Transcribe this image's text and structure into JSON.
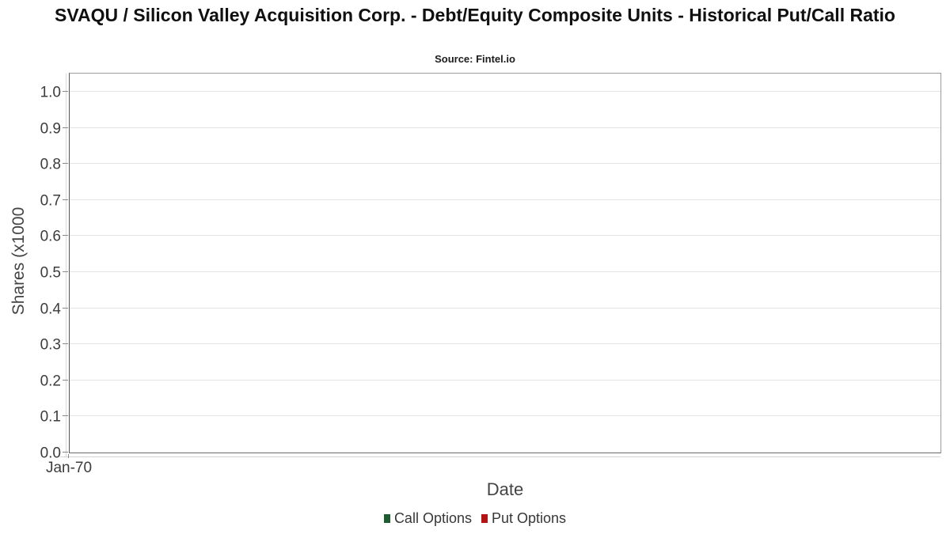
{
  "title": "SVAQU / Silicon Valley Acquisition Corp. - Debt/Equity Composite Units - Historical Put/Call Ratio",
  "subtitle": "Source: Fintel.io",
  "chart_data": {
    "type": "line",
    "title": "SVAQU / Silicon Valley Acquisition Corp. - Debt/Equity Composite Units - Historical Put/Call Ratio",
    "subtitle": "Source: Fintel.io",
    "xlabel": "Date",
    "ylabel": "Shares (x1000",
    "ylim": [
      0.0,
      1.0
    ],
    "y_ticks": [
      "0.0",
      "0.1",
      "0.2",
      "0.3",
      "0.4",
      "0.5",
      "0.6",
      "0.7",
      "0.8",
      "0.9",
      "1.0"
    ],
    "x_ticks": [
      "Jan-70"
    ],
    "grid": true,
    "legend_position": "bottom",
    "plot_is_empty": true,
    "series": [
      {
        "name": "Call Options",
        "color": "#1e5b31",
        "x": [],
        "values": []
      },
      {
        "name": "Put Options",
        "color": "#b11412",
        "x": [],
        "values": []
      }
    ]
  },
  "colors": {
    "gridline": "#e4e4e4",
    "plot_border": "#9a9a9a",
    "y_axis_line": "#56565a",
    "tick_color": "#8a8a8a"
  }
}
